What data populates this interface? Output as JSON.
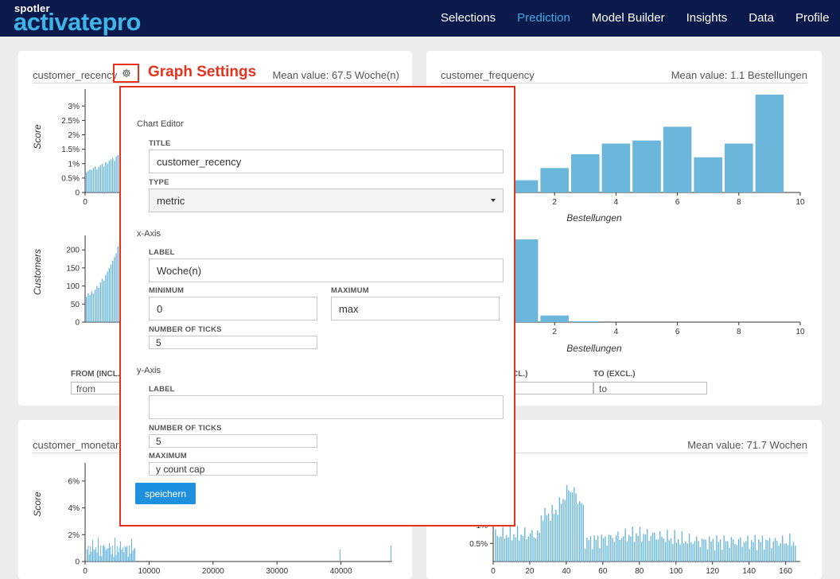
{
  "app": {
    "brand_small": "spotler",
    "brand_main": "activatepro"
  },
  "nav": [
    {
      "label": "Selections",
      "active": false
    },
    {
      "label": "Prediction",
      "active": true
    },
    {
      "label": "Model Builder",
      "active": false
    },
    {
      "label": "Insights",
      "active": false
    },
    {
      "label": "Data",
      "active": false
    },
    {
      "label": "Profile",
      "active": false
    }
  ],
  "colors": {
    "nav_bg": "#0b1a4b",
    "accent": "#3fa9e6",
    "bar": "#6bb7db",
    "annotation": "#e8321e",
    "button": "#1d90e0"
  },
  "icons": {
    "settings": "gear-icon",
    "dropdown": "caret-down-icon"
  },
  "annotation": {
    "label": "Graph Settings"
  },
  "cards": {
    "recency": {
      "title": "customer_recency",
      "mean": "Mean value: 67.5 Woche(n)"
    },
    "frequency": {
      "title": "customer_frequency",
      "mean": "Mean value: 1.1 Bestellungen"
    },
    "monetary": {
      "title": "customer_monetar"
    },
    "lower_right": {
      "mean": "Mean value: 71.7 Wochen"
    }
  },
  "filters": {
    "recency": {
      "from_label": "FROM (INCL.)",
      "from_placeholder": "from"
    },
    "frequency": {
      "from_label_partial": "CL.)",
      "to_label": "TO (EXCL.)",
      "to_placeholder": "to"
    }
  },
  "modal": {
    "heading": "Chart Editor",
    "title_label": "TITLE",
    "title_value": "customer_recency",
    "type_label": "TYPE",
    "type_value": "metric",
    "x_heading": "x-Axis",
    "x_label_label": "LABEL",
    "x_label_value": "Woche(n)",
    "x_min_label": "MINIMUM",
    "x_min_value": "0",
    "x_max_label": "MAXIMUM",
    "x_max_value": "max",
    "x_ticks_label": "NUMBER OF TICKS",
    "x_ticks_value": "5",
    "y_heading": "y-Axis",
    "y_label_label": "LABEL",
    "y_label_value": "",
    "y_ticks_label": "NUMBER OF TICKS",
    "y_ticks_value": "5",
    "y_max_label": "MAXIMUM",
    "y_max_placeholder": "y count cap",
    "save_label": "speichern"
  },
  "chart_data": [
    {
      "type": "bar",
      "chart": "recency-score",
      "ylabel": "Score",
      "x_ticks": [
        "0"
      ],
      "y_ticks": [
        "0",
        "0.5%",
        "1%",
        "1.5%",
        "2%",
        "2.5%",
        "3%"
      ],
      "ylim": [
        0,
        3.2
      ],
      "values": [
        0.7,
        0.75,
        0.8,
        0.78,
        0.85,
        0.9,
        0.8,
        0.88,
        0.95,
        1.0,
        0.9,
        1.05,
        1.0,
        1.1,
        1.15,
        1.2,
        1.1,
        1.25,
        1.3,
        1.3
      ]
    },
    {
      "type": "bar",
      "chart": "recency-customers",
      "ylabel": "Customers",
      "x_ticks": [
        "0"
      ],
      "y_ticks": [
        "0",
        "50",
        "100",
        "150",
        "200"
      ],
      "ylim": [
        0,
        240
      ],
      "values": [
        70,
        80,
        75,
        85,
        80,
        90,
        100,
        95,
        110,
        120,
        115,
        130,
        140,
        150,
        160,
        170,
        180,
        190,
        210,
        225
      ]
    },
    {
      "type": "bar",
      "chart": "frequency-score",
      "xlabel": "Bestellungen",
      "x_ticks": [
        "2",
        "4",
        "6",
        "8",
        "10"
      ],
      "xlim": [
        0,
        10
      ],
      "categories": [
        1,
        2,
        3,
        4,
        5,
        6,
        7,
        8,
        9
      ],
      "values": [
        0.4,
        0.8,
        1.25,
        1.6,
        1.7,
        2.15,
        1.15,
        1.6,
        3.2
      ],
      "ylim": [
        0,
        3.2
      ]
    },
    {
      "type": "bar",
      "chart": "frequency-customers",
      "xlabel": "Bestellungen",
      "x_ticks": [
        "2",
        "4",
        "6",
        "8",
        "10"
      ],
      "xlim": [
        0,
        10
      ],
      "categories": [
        1,
        2,
        3
      ],
      "values": [
        100,
        8,
        1
      ],
      "ylim": [
        0,
        100
      ]
    },
    {
      "type": "bar",
      "chart": "monetary-score",
      "ylabel": "Score",
      "x_ticks": [
        "0",
        "10000",
        "20000",
        "30000",
        "40000"
      ],
      "xlim": [
        0,
        48000
      ],
      "y_ticks": [
        "0",
        "2%",
        "4%",
        "6%"
      ],
      "ylim": [
        0,
        7
      ]
    },
    {
      "type": "bar",
      "chart": "lower-right-score",
      "x_ticks": [
        "0",
        "20",
        "40",
        "60",
        "80",
        "100",
        "120",
        "140",
        "160"
      ],
      "xlim": [
        0,
        168
      ],
      "y_ticks": [
        "0.5%",
        "1%"
      ],
      "ylim": [
        0,
        2.6
      ]
    }
  ]
}
